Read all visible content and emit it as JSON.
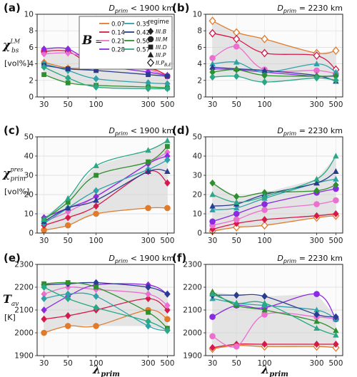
{
  "legend": {
    "b_label": "B =",
    "regime_title": "regime",
    "b_values": [
      {
        "label": "0.07",
        "color": "#e07b2c"
      },
      {
        "label": "0.14",
        "color": "#d6194b"
      },
      {
        "label": "0.21",
        "color": "#ec6fd0"
      },
      {
        "label": "0.28",
        "color": "#8a2be2"
      },
      {
        "label": "0.35",
        "color": "#2fa1a8"
      },
      {
        "label": "0.42",
        "color": "#2a3c8f"
      },
      {
        "label": "0.50",
        "color": "#2e8f2e"
      },
      {
        "label": "0.57",
        "color": "#2aa886"
      }
    ],
    "regimes": [
      {
        "label": "III.B",
        "marker": "diamond"
      },
      {
        "label": "III.M",
        "marker": "circle"
      },
      {
        "label": "III.D",
        "marker": "square"
      },
      {
        "label": "III.P",
        "marker": "triangle"
      },
      {
        "label": "II.P_B,E",
        "marker": "open-diamond"
      }
    ]
  },
  "shared_x": {
    "label": "λ_prim",
    "ticks": [
      30,
      50,
      100,
      300,
      500
    ]
  },
  "chart_data": [
    {
      "id": "a",
      "panel_label": "(a)",
      "header": "D_prim < 1900 km",
      "type": "line",
      "ylabel": "χ_bs^LM [vol%]",
      "ylim": [
        0,
        10
      ],
      "yticks": [
        0,
        2,
        4,
        6,
        8,
        10
      ],
      "x": [
        30,
        50,
        100,
        300,
        500
      ],
      "series": [
        {
          "name": "0.07",
          "color": "#e07b2c",
          "marker": "diamond",
          "values": [
            4.2,
            3.5,
            3.5,
            3.4,
            2.6
          ]
        },
        {
          "name": "0.14",
          "color": "#d6194b",
          "marker": "circle",
          "values": [
            5.5,
            5.5,
            3.8,
            3.5,
            2.5
          ]
        },
        {
          "name": "0.21",
          "color": "#ec6fd0",
          "marker": "diamond",
          "values": [
            5.2,
            5.3,
            4.5,
            3.3,
            2.5
          ]
        },
        {
          "name": "0.28",
          "color": "#8a2be2",
          "marker": "diamond",
          "values": [
            5.8,
            5.8,
            4.0,
            3.0,
            2.6
          ]
        },
        {
          "name": "0.35",
          "color": "#2fa1a8",
          "marker": "diamond",
          "values": [
            4.0,
            3.2,
            2.2,
            1.7,
            1.6
          ]
        },
        {
          "name": "0.42",
          "color": "#2a3c8f",
          "marker": "square",
          "values": [
            3.8,
            3.4,
            3.2,
            2.7,
            2.5
          ]
        },
        {
          "name": "0.50",
          "color": "#2e8f2e",
          "marker": "square",
          "values": [
            2.7,
            1.7,
            1.4,
            1.2,
            1.1
          ]
        },
        {
          "name": "0.57",
          "color": "#2aa886",
          "marker": "diamond",
          "values": [
            3.6,
            2.3,
            1.2,
            1.0,
            1.0
          ]
        }
      ],
      "band": {
        "upper": [
          5.8,
          5.8,
          4.5,
          3.5,
          2.6
        ],
        "lower": [
          2.7,
          1.7,
          1.2,
          1.0,
          1.0
        ]
      }
    },
    {
      "id": "b",
      "panel_label": "(b)",
      "header": "D_prim = 2230 km",
      "type": "line",
      "ylabel": "",
      "ylim": [
        0,
        10
      ],
      "yticks": [
        0,
        2,
        4,
        6,
        8,
        10
      ],
      "x": [
        30,
        50,
        100,
        300,
        500
      ],
      "series": [
        {
          "name": "0.07",
          "color": "#e07b2c",
          "marker": "open-diamond",
          "values": [
            9.2,
            7.8,
            7.0,
            5.3,
            5.6
          ]
        },
        {
          "name": "0.14",
          "color": "#d6194b",
          "marker": "open-diamond",
          "values": [
            7.7,
            7.0,
            5.3,
            5.0,
            3.3
          ]
        },
        {
          "name": "0.21",
          "color": "#ec6fd0",
          "marker": "circle",
          "values": [
            4.7,
            6.1,
            3.3,
            3.2,
            2.8
          ]
        },
        {
          "name": "0.28",
          "color": "#8a2be2",
          "marker": "diamond",
          "values": [
            3.4,
            3.3,
            3.0,
            2.5,
            2.6
          ]
        },
        {
          "name": "0.35",
          "color": "#2fa1a8",
          "marker": "triangle",
          "values": [
            4.0,
            4.2,
            3.0,
            4.0,
            3.0
          ]
        },
        {
          "name": "0.42",
          "color": "#2a3c8f",
          "marker": "triangle",
          "values": [
            3.6,
            3.4,
            3.2,
            2.6,
            1.9
          ]
        },
        {
          "name": "0.50",
          "color": "#2e8f2e",
          "marker": "diamond",
          "values": [
            3.0,
            3.3,
            2.6,
            2.5,
            2.5
          ]
        },
        {
          "name": "0.57",
          "color": "#2aa886",
          "marker": "diamond",
          "values": [
            2.4,
            2.5,
            1.8,
            2.3,
            2.0
          ]
        }
      ],
      "band": {
        "upper": [
          9.2,
          7.8,
          7.0,
          5.3,
          5.6
        ],
        "lower": [
          2.4,
          2.5,
          1.8,
          2.3,
          1.9
        ]
      }
    },
    {
      "id": "c",
      "panel_label": "(c)",
      "header": "D_prim < 1900 km",
      "type": "line",
      "ylabel": "χ_prim^pres [vol%]",
      "ylim": [
        0,
        50
      ],
      "yticks": [
        0,
        10,
        20,
        30,
        40,
        50
      ],
      "x": [
        30,
        50,
        100,
        300,
        500
      ],
      "series": [
        {
          "name": "0.07",
          "color": "#e07b2c",
          "marker": "circle",
          "values": [
            1.5,
            4,
            10,
            13,
            13
          ]
        },
        {
          "name": "0.14",
          "color": "#d6194b",
          "marker": "diamond",
          "values": [
            4,
            8,
            14,
            32,
            26
          ]
        },
        {
          "name": "0.21",
          "color": "#ec6fd0",
          "marker": "diamond",
          "values": [
            6,
            11,
            19,
            36,
            42
          ]
        },
        {
          "name": "0.28",
          "color": "#8a2be2",
          "marker": "diamond",
          "values": [
            8,
            13,
            19,
            36,
            40
          ]
        },
        {
          "name": "0.35",
          "color": "#2fa1a8",
          "marker": "diamond",
          "values": [
            5,
            13,
            22,
            33,
            38
          ]
        },
        {
          "name": "0.42",
          "color": "#2a3c8f",
          "marker": "triangle",
          "values": [
            6,
            13,
            17,
            32,
            32
          ]
        },
        {
          "name": "0.50",
          "color": "#2e8f2e",
          "marker": "square",
          "values": [
            7,
            16,
            30,
            37,
            45
          ]
        },
        {
          "name": "0.57",
          "color": "#2aa886",
          "marker": "triangle",
          "values": [
            7,
            18,
            35,
            43,
            48
          ]
        }
      ],
      "band": {
        "upper": [
          8,
          18,
          35,
          43,
          48
        ],
        "lower": [
          1.5,
          4,
          10,
          13,
          13
        ]
      }
    },
    {
      "id": "d",
      "panel_label": "(d)",
      "header": "D_prim = 2230 km",
      "type": "line",
      "ylabel": "",
      "ylim": [
        0,
        50
      ],
      "yticks": [
        0,
        10,
        20,
        30,
        40,
        50
      ],
      "x": [
        30,
        50,
        100,
        300,
        500
      ],
      "series": [
        {
          "name": "0.07",
          "color": "#e07b2c",
          "marker": "open-diamond",
          "values": [
            1,
            3,
            4,
            8,
            9
          ]
        },
        {
          "name": "0.14",
          "color": "#d6194b",
          "marker": "diamond",
          "values": [
            2,
            5,
            7,
            9,
            10
          ]
        },
        {
          "name": "0.21",
          "color": "#ec6fd0",
          "marker": "circle",
          "values": [
            4,
            7,
            12,
            15,
            17
          ]
        },
        {
          "name": "0.28",
          "color": "#8a2be2",
          "marker": "circle",
          "values": [
            6,
            10,
            15,
            21,
            23
          ]
        },
        {
          "name": "0.35",
          "color": "#2fa1a8",
          "marker": "triangle",
          "values": [
            12,
            13,
            18,
            26,
            28
          ]
        },
        {
          "name": "0.42",
          "color": "#2a3c8f",
          "marker": "triangle",
          "values": [
            14,
            15,
            20,
            26,
            32
          ]
        },
        {
          "name": "0.50",
          "color": "#2e8f2e",
          "marker": "diamond",
          "values": [
            26,
            19,
            21,
            22,
            25
          ]
        },
        {
          "name": "0.57",
          "color": "#2aa886",
          "marker": "triangle",
          "values": [
            20,
            16,
            19,
            28,
            40
          ]
        }
      ],
      "band": {
        "upper": [
          26,
          19,
          21,
          28,
          40
        ],
        "lower": [
          1,
          3,
          4,
          8,
          9
        ]
      }
    },
    {
      "id": "e",
      "panel_label": "(e)",
      "header": "D_prim < 1900 km",
      "type": "line",
      "ylabel": "T_av [K]",
      "ylim": [
        1900,
        2300
      ],
      "yticks": [
        1900,
        2000,
        2100,
        2200,
        2300
      ],
      "x": [
        30,
        50,
        100,
        300,
        500
      ],
      "series": [
        {
          "name": "0.07",
          "color": "#e07b2c",
          "marker": "circle",
          "values": [
            2000,
            2030,
            2030,
            2100,
            2060
          ]
        },
        {
          "name": "0.14",
          "color": "#d6194b",
          "marker": "diamond",
          "values": [
            2060,
            2075,
            2100,
            2150,
            2100
          ]
        },
        {
          "name": "0.21",
          "color": "#ec6fd0",
          "marker": "diamond",
          "values": [
            2170,
            2200,
            2190,
            2170,
            2120
          ]
        },
        {
          "name": "0.28",
          "color": "#8a2be2",
          "marker": "diamond",
          "values": [
            2100,
            2160,
            2210,
            2210,
            2170
          ]
        },
        {
          "name": "0.35",
          "color": "#2fa1a8",
          "marker": "diamond",
          "values": [
            2150,
            2170,
            2160,
            2030,
            2010
          ]
        },
        {
          "name": "0.42",
          "color": "#2a3c8f",
          "marker": "diamond",
          "values": [
            2210,
            2215,
            2220,
            2200,
            2170
          ]
        },
        {
          "name": "0.50",
          "color": "#2e8f2e",
          "marker": "square",
          "values": [
            2215,
            2220,
            2200,
            2090,
            2020
          ]
        },
        {
          "name": "0.57",
          "color": "#2aa886",
          "marker": "diamond",
          "values": [
            2200,
            2150,
            2110,
            2050,
            2010
          ]
        }
      ],
      "band": {
        "upper": [
          2215,
          2220,
          2220,
          2210,
          2170
        ],
        "lower": [
          2000,
          2030,
          2030,
          2030,
          2010
        ]
      }
    },
    {
      "id": "f",
      "panel_label": "(f)",
      "header": "D_prim = 2230 km",
      "type": "line",
      "ylabel": "",
      "ylim": [
        1900,
        2300
      ],
      "yticks": [
        1900,
        2000,
        2100,
        2200,
        2300
      ],
      "x": [
        30,
        50,
        100,
        300,
        500
      ],
      "series": [
        {
          "name": "0.07",
          "color": "#e07b2c",
          "marker": "open-diamond",
          "values": [
            1930,
            1945,
            1940,
            1940,
            1935
          ]
        },
        {
          "name": "0.14",
          "color": "#d6194b",
          "marker": "diamond",
          "values": [
            1935,
            1950,
            1950,
            1950,
            1950
          ]
        },
        {
          "name": "0.21",
          "color": "#ec6fd0",
          "marker": "circle",
          "values": [
            1985,
            1940,
            2080,
            2070,
            2060
          ]
        },
        {
          "name": "0.28",
          "color": "#8a2be2",
          "marker": "circle",
          "values": [
            2070,
            2120,
            2110,
            2170,
            2060
          ]
        },
        {
          "name": "0.35",
          "color": "#2fa1a8",
          "marker": "triangle",
          "values": [
            2150,
            2130,
            2120,
            2100,
            2060
          ]
        },
        {
          "name": "0.42",
          "color": "#2a3c8f",
          "marker": "diamond",
          "values": [
            2165,
            2165,
            2160,
            2080,
            2070
          ]
        },
        {
          "name": "0.50",
          "color": "#2e8f2e",
          "marker": "triangle",
          "values": [
            2180,
            2120,
            2100,
            2050,
            2010
          ]
        },
        {
          "name": "0.57",
          "color": "#2aa886",
          "marker": "triangle",
          "values": [
            2170,
            2130,
            2130,
            2020,
            1990
          ]
        }
      ],
      "band": {
        "upper": [
          2180,
          2165,
          2160,
          2170,
          2070
        ],
        "lower": [
          1930,
          1940,
          1940,
          1940,
          1935
        ]
      }
    }
  ]
}
